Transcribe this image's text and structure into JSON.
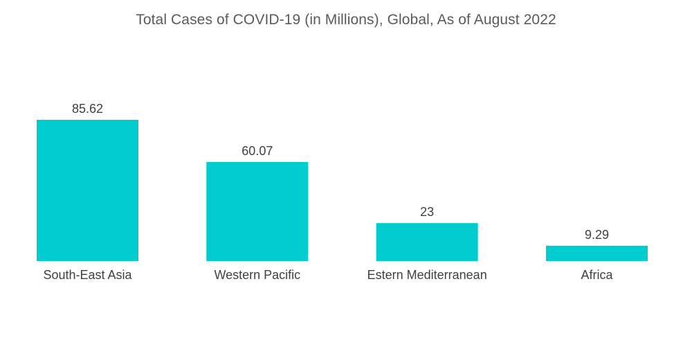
{
  "chart_data": {
    "type": "bar",
    "title": "Total Cases of COVID-19 (in Millions), Global, As of August 2022",
    "categories": [
      "South-East Asia",
      "Western Pacific",
      "Estern Mediterranean",
      "Africa"
    ],
    "values": [
      85.62,
      60.07,
      23,
      9.29
    ],
    "value_labels": [
      "85.62",
      "60.07",
      "23",
      "9.29"
    ],
    "xlabel": "",
    "ylabel": "",
    "ylim": [
      0,
      85.62
    ],
    "grid": false,
    "legend": "none",
    "bar_color": "#00cccf"
  }
}
